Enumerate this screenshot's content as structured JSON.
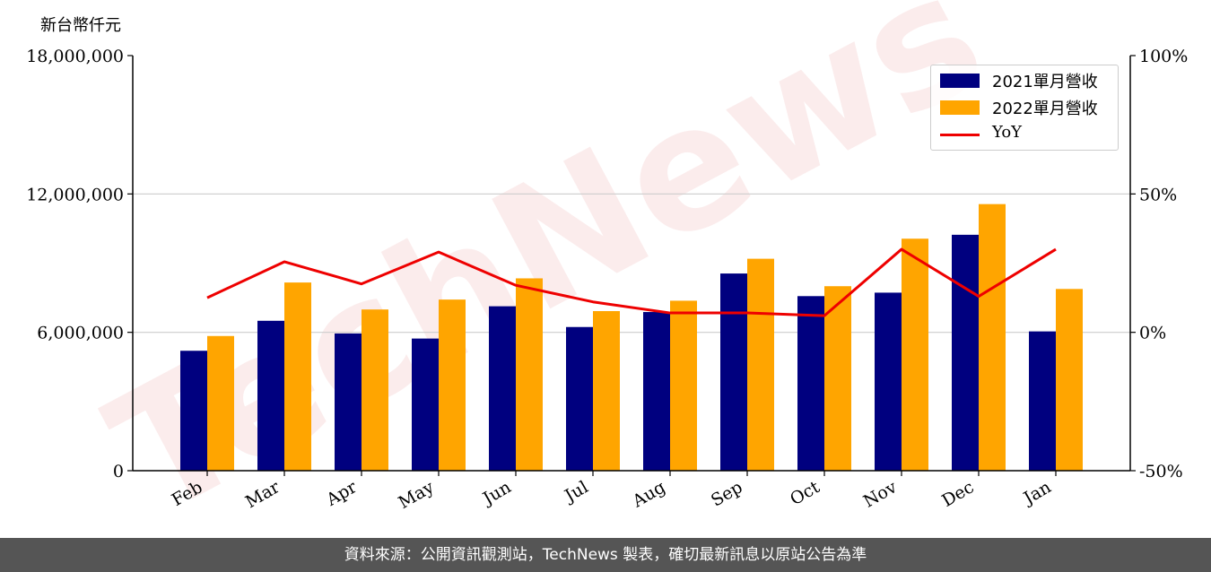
{
  "chart_data": {
    "type": "bar",
    "ylabel": "新台幣仟元",
    "categories": [
      "Feb",
      "Mar",
      "Apr",
      "May",
      "Jun",
      "Jul",
      "Aug",
      "Sep",
      "Oct",
      "Nov",
      "Dec",
      "Jan"
    ],
    "series": [
      {
        "name": "2021單月營收",
        "type": "bar",
        "axis": "left",
        "color": "#00007f",
        "values": [
          5200000,
          6500000,
          5950000,
          5730000,
          7130000,
          6230000,
          6880000,
          8550000,
          7570000,
          7720000,
          10230000,
          6040000
        ]
      },
      {
        "name": "2022單月營收",
        "type": "bar",
        "axis": "left",
        "color": "#ffa500",
        "values": [
          5840000,
          8160000,
          6990000,
          7420000,
          8340000,
          6920000,
          7370000,
          9190000,
          8000000,
          10060000,
          11560000,
          7880000
        ]
      }
    ],
    "line_series": {
      "name": "YoY",
      "axis": "right",
      "color": "#ee0000",
      "values": [
        12.5,
        25.5,
        17.5,
        29.0,
        17.0,
        11.0,
        7.0,
        7.0,
        6.0,
        30.0,
        13.0,
        30.0
      ]
    },
    "ylim": [
      0,
      18000000
    ],
    "yticks": [
      0,
      6000000,
      12000000,
      18000000
    ],
    "ytick_labels": [
      "0",
      "6,000,000",
      "12,000,000",
      "18,000,000"
    ],
    "y2lim": [
      -50,
      100
    ],
    "y2ticks": [
      -50,
      0,
      50,
      100
    ],
    "y2tick_labels": [
      "-50%",
      "0%",
      "50%",
      "100%"
    ],
    "grid": "horizontal",
    "legend_position": "top-right"
  },
  "watermark": "TechNews",
  "footer_text": "資料來源：公開資訊觀測站，TechNews 製表，確切最新訊息以原站公告為準"
}
